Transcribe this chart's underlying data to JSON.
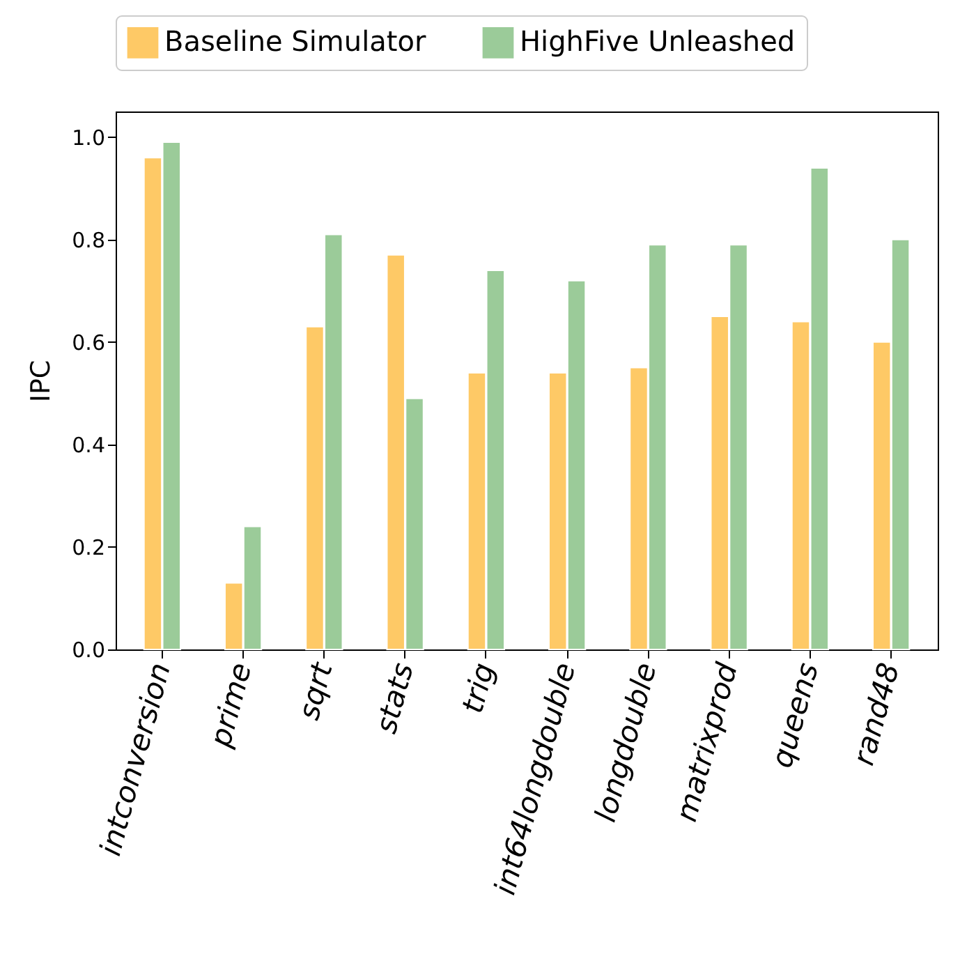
{
  "chart_data": {
    "type": "bar",
    "ylabel": "IPC",
    "categories": [
      "intconversion",
      "prime",
      "sqrt",
      "stats",
      "trig",
      "int64longdouble",
      "longdouble",
      "matrixprod",
      "queens",
      "rand48"
    ],
    "series": [
      {
        "name": "Baseline Simulator",
        "color": "#fec966",
        "values": [
          0.96,
          0.13,
          0.63,
          0.77,
          0.54,
          0.54,
          0.55,
          0.65,
          0.64,
          0.6
        ]
      },
      {
        "name": "HighFive Unleashed",
        "color": "#9bcb99",
        "values": [
          0.99,
          0.24,
          0.81,
          0.49,
          0.74,
          0.72,
          0.79,
          0.79,
          0.94,
          0.8
        ]
      }
    ],
    "ylim": [
      0,
      1.05
    ],
    "yticks": [
      {
        "value": 0,
        "label": "0.0"
      },
      0.2,
      0.4,
      0.6,
      0.8,
      {
        "value": 1,
        "label": "1.0"
      }
    ],
    "legend": "top",
    "grid": false
  }
}
